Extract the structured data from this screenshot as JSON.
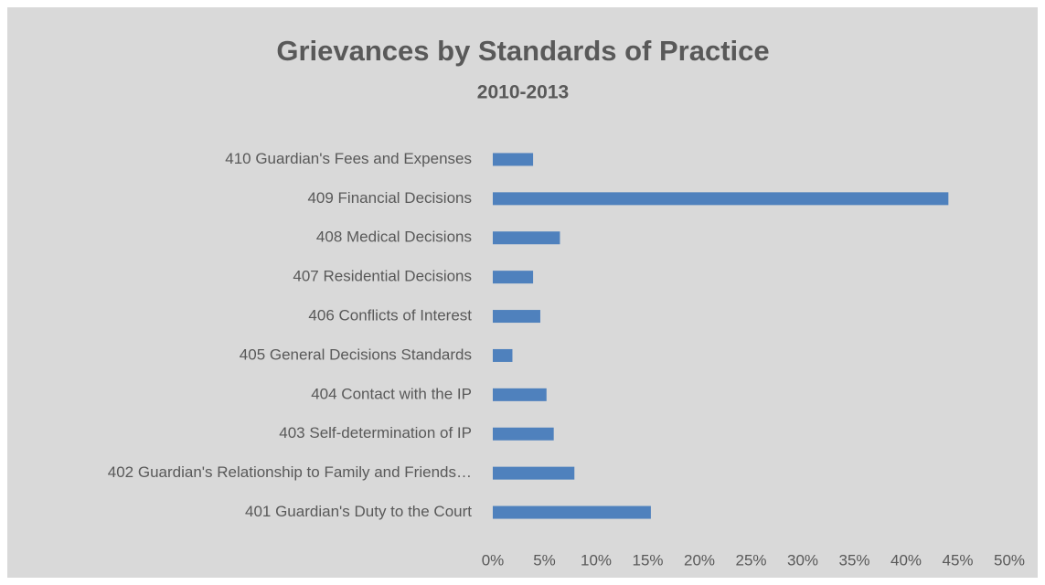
{
  "chart_data": {
    "type": "barh",
    "title": "Grievances by Standards of Practice",
    "subtitle": "2010-2013",
    "categories": [
      "401 Guardian's Duty to the Court",
      "402 Guardian's Relationship to Family and Friends…",
      "403 Self-determination of IP",
      "404 Contact with the IP",
      "405 General Decisions Standards",
      "406 Conflicts of Interest",
      "407 Residential Decisions",
      "408 Medical Decisions",
      "409 Financial Decisions",
      "410 Guardian's Fees and Expenses"
    ],
    "values": [
      15.3,
      7.9,
      5.9,
      5.2,
      1.9,
      4.6,
      3.9,
      6.5,
      44.1,
      3.9
    ],
    "color": "#4f81bd",
    "xlim": [
      0,
      50
    ],
    "xticks": [
      {
        "value": 0,
        "label": "0%"
      },
      {
        "value": 5,
        "label": "5%"
      },
      {
        "value": 10,
        "label": "10%"
      },
      {
        "value": 15,
        "label": "15%"
      },
      {
        "value": 20,
        "label": "20%"
      },
      {
        "value": 25,
        "label": "25%"
      },
      {
        "value": 30,
        "label": "30%"
      },
      {
        "value": 35,
        "label": "35%"
      },
      {
        "value": 40,
        "label": "40%"
      },
      {
        "value": 45,
        "label": "45%"
      },
      {
        "value": 50,
        "label": "50%"
      }
    ],
    "grid": false
  }
}
